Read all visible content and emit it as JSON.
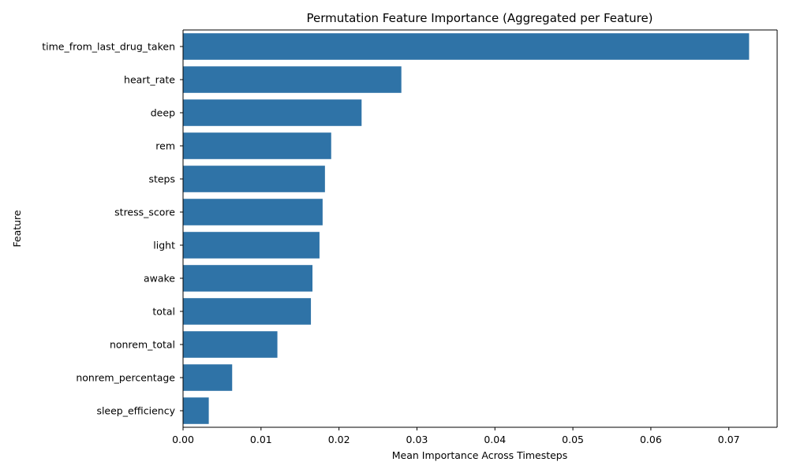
{
  "chart_data": {
    "type": "bar",
    "orientation": "horizontal",
    "title": "Permutation Feature Importance (Aggregated per Feature)",
    "xlabel": "Mean Importance Across Timesteps",
    "ylabel": "Feature",
    "categories": [
      "time_from_last_drug_taken",
      "heart_rate",
      "deep",
      "rem",
      "steps",
      "stress_score",
      "light",
      "awake",
      "total",
      "nonrem_total",
      "nonrem_percentage",
      "sleep_efficiency"
    ],
    "values": [
      0.0726,
      0.028,
      0.0229,
      0.019,
      0.0182,
      0.0179,
      0.0175,
      0.0166,
      0.0164,
      0.0121,
      0.0063,
      0.0033
    ],
    "xlim": [
      0,
      0.0762
    ],
    "xticks": [
      "0.00",
      "0.01",
      "0.02",
      "0.03",
      "0.04",
      "0.05",
      "0.06",
      "0.07"
    ],
    "grid": false,
    "bar_color": "#2f73a7"
  }
}
